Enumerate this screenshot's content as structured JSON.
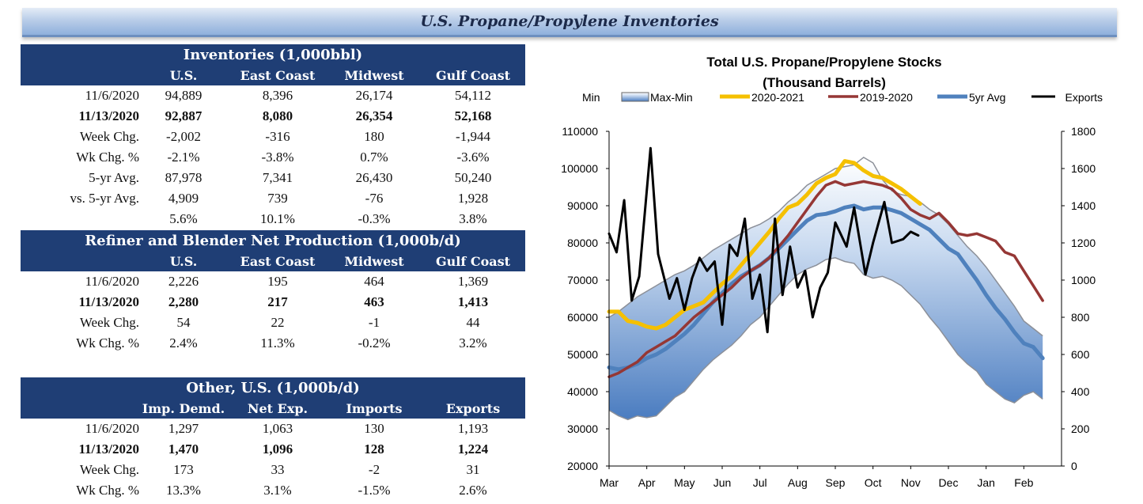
{
  "banner": {
    "title": "U.S. Propane/Propylene Inventories"
  },
  "inventories": {
    "title": "Inventories (1,000bbl)",
    "columns": [
      "",
      "U.S.",
      "East Coast",
      "Midwest",
      "Gulf Coast"
    ],
    "rows": [
      {
        "label": "11/6/2020",
        "values": [
          "94,889",
          "8,396",
          "26,174",
          "54,112"
        ],
        "bold": false
      },
      {
        "label": "11/13/2020",
        "values": [
          "92,887",
          "8,080",
          "26,354",
          "52,168"
        ],
        "bold": true
      },
      {
        "label": "Week Chg.",
        "values": [
          "-2,002",
          "-316",
          "180",
          "-1,944"
        ],
        "bold": false
      },
      {
        "label": "Wk Chg. %",
        "values": [
          "-2.1%",
          "-3.8%",
          "0.7%",
          "-3.6%"
        ],
        "bold": false
      },
      {
        "label": "5-yr Avg.",
        "values": [
          "87,978",
          "7,341",
          "26,430",
          "50,240"
        ],
        "bold": false
      },
      {
        "label": "vs. 5-yr Avg.",
        "values": [
          "4,909",
          "739",
          "-76",
          "1,928"
        ],
        "bold": false
      },
      {
        "label": "",
        "values": [
          "5.6%",
          "10.1%",
          "-0.3%",
          "3.8%"
        ],
        "bold": false
      }
    ]
  },
  "production": {
    "title": "Refiner and Blender Net Production (1,000b/d)",
    "columns": [
      "",
      "U.S.",
      "East Coast",
      "Midwest",
      "Gulf Coast"
    ],
    "rows": [
      {
        "label": "11/6/2020",
        "values": [
          "2,226",
          "195",
          "464",
          "1,369"
        ],
        "bold": false
      },
      {
        "label": "11/13/2020",
        "values": [
          "2,280",
          "217",
          "463",
          "1,413"
        ],
        "bold": true
      },
      {
        "label": "Week Chg.",
        "values": [
          "54",
          "22",
          "-1",
          "44"
        ],
        "bold": false
      },
      {
        "label": "Wk Chg. %",
        "values": [
          "2.4%",
          "11.3%",
          "-0.2%",
          "3.2%"
        ],
        "bold": false
      }
    ]
  },
  "other": {
    "title": "Other, U.S. (1,000b/d)",
    "columns": [
      "",
      "Imp. Demd.",
      "Net Exp.",
      "Imports",
      "Exports"
    ],
    "rows": [
      {
        "label": "11/6/2020",
        "values": [
          "1,297",
          "1,063",
          "130",
          "1,193"
        ],
        "bold": false
      },
      {
        "label": "11/13/2020",
        "values": [
          "1,470",
          "1,096",
          "128",
          "1,224"
        ],
        "bold": true
      },
      {
        "label": "Week Chg.",
        "values": [
          "173",
          "33",
          "-2",
          "31"
        ],
        "bold": false
      },
      {
        "label": "Wk Chg. %",
        "values": [
          "13.3%",
          "3.1%",
          "-1.5%",
          "2.6%"
        ],
        "bold": false
      }
    ]
  },
  "chart_data": {
    "type": "line",
    "title": "Total U.S. Propane/Propylene Stocks",
    "subtitle": "(Thousand Barrels)",
    "x_labels": [
      "Mar",
      "Apr",
      "May",
      "Jun",
      "Jul",
      "Aug",
      "Sep",
      "Oct",
      "Nov",
      "Dec",
      "Jan",
      "Feb"
    ],
    "ylim": [
      20000,
      110000
    ],
    "yticks": [
      20000,
      30000,
      40000,
      50000,
      60000,
      70000,
      80000,
      90000,
      100000,
      110000
    ],
    "y2lim": [
      0,
      1800
    ],
    "y2ticks": [
      0,
      200,
      400,
      600,
      800,
      1000,
      1200,
      1400,
      1600,
      1800
    ],
    "legend_position": "top",
    "legend": [
      "Min",
      "Max-Min",
      "2020-2021",
      "2019-2020",
      "5yr Avg",
      "Exports"
    ],
    "band": {
      "name": "Max-Min",
      "x": [
        0,
        0.25,
        0.5,
        0.75,
        1,
        1.25,
        1.5,
        1.75,
        2,
        2.25,
        2.5,
        2.75,
        3,
        3.25,
        3.5,
        3.75,
        4,
        4.25,
        4.5,
        4.75,
        5,
        5.25,
        5.5,
        5.75,
        6,
        6.25,
        6.5,
        6.75,
        7,
        7.25,
        7.5,
        7.75,
        8,
        8.25,
        8.5,
        8.75,
        9,
        9.25,
        9.5,
        9.75,
        10,
        10.25,
        10.5,
        10.75,
        11,
        11.25,
        11.5
      ],
      "max": [
        60000,
        61500,
        63500,
        65500,
        67000,
        68500,
        70000,
        71500,
        72500,
        74000,
        76000,
        78000,
        79500,
        81000,
        82500,
        84000,
        85000,
        86500,
        88500,
        91000,
        93000,
        95500,
        97000,
        98500,
        100000,
        100500,
        101000,
        103000,
        101500,
        97000,
        94000,
        93000,
        92500,
        91000,
        89000,
        87500,
        85000,
        82000,
        79000,
        76500,
        73500,
        70000,
        66500,
        63000,
        59000,
        57000,
        55000
      ],
      "min": [
        35000,
        33500,
        32500,
        33500,
        33000,
        33500,
        36000,
        38500,
        40000,
        43000,
        46000,
        48500,
        50500,
        52500,
        55000,
        58000,
        60000,
        63000,
        66000,
        69000,
        71500,
        73000,
        74000,
        75500,
        76000,
        75000,
        74500,
        71500,
        70500,
        71000,
        70000,
        68500,
        66000,
        63500,
        60000,
        57000,
        53500,
        50000,
        47500,
        45500,
        42000,
        40000,
        38000,
        37000,
        39000,
        40000,
        38000
      ]
    },
    "series": [
      {
        "name": "2020-2021",
        "color": "#f5c000",
        "axis": "left",
        "x": [
          0,
          0.25,
          0.5,
          0.75,
          1,
          1.25,
          1.5,
          1.75,
          2,
          2.25,
          2.5,
          2.75,
          3,
          3.25,
          3.5,
          3.75,
          4,
          4.25,
          4.5,
          4.75,
          5,
          5.25,
          5.5,
          5.75,
          6,
          6.25,
          6.5,
          6.75,
          7,
          7.25,
          7.5,
          7.75,
          8,
          8.25
        ],
        "values": [
          61500,
          61500,
          59000,
          58500,
          57500,
          57000,
          58000,
          60000,
          62000,
          63000,
          64000,
          66500,
          69000,
          71000,
          74000,
          77000,
          80000,
          83000,
          86500,
          89500,
          90500,
          93000,
          96000,
          97500,
          98500,
          102000,
          101500,
          99500,
          98000,
          97500,
          96000,
          94500,
          92500,
          90500
        ]
      },
      {
        "name": "2019-2020",
        "color": "#953735",
        "axis": "left",
        "x": [
          0,
          0.25,
          0.5,
          0.75,
          1,
          1.25,
          1.5,
          1.75,
          2,
          2.25,
          2.5,
          2.75,
          3,
          3.25,
          3.5,
          3.75,
          4,
          4.25,
          4.5,
          4.75,
          5,
          5.25,
          5.5,
          5.75,
          6,
          6.25,
          6.5,
          6.75,
          7,
          7.25,
          7.5,
          7.75,
          8,
          8.25,
          8.5,
          8.75,
          9,
          9.25,
          9.5,
          9.75,
          10,
          10.25,
          10.5,
          10.75,
          11,
          11.25,
          11.5
        ],
        "values": [
          44000,
          45000,
          46500,
          48000,
          50500,
          52000,
          53500,
          55000,
          57500,
          60000,
          62000,
          64000,
          66000,
          68000,
          70500,
          72500,
          74000,
          76000,
          79000,
          82000,
          85500,
          89000,
          92500,
          95500,
          96500,
          95500,
          96000,
          96500,
          96000,
          95500,
          94500,
          92000,
          89000,
          87500,
          86500,
          88000,
          85500,
          82500,
          82000,
          82500,
          81500,
          80500,
          77500,
          76500,
          72500,
          68500,
          64500
        ]
      },
      {
        "name": "5yr Avg",
        "color": "#4f81bd",
        "axis": "left",
        "x": [
          0,
          0.25,
          0.5,
          0.75,
          1,
          1.25,
          1.5,
          1.75,
          2,
          2.25,
          2.5,
          2.75,
          3,
          3.25,
          3.5,
          3.75,
          4,
          4.25,
          4.5,
          4.75,
          5,
          5.25,
          5.5,
          5.75,
          6,
          6.25,
          6.5,
          6.75,
          7,
          7.25,
          7.5,
          7.75,
          8,
          8.25,
          8.5,
          8.75,
          9,
          9.25,
          9.5,
          9.75,
          10,
          10.25,
          10.5,
          10.75,
          11,
          11.25,
          11.5
        ],
        "values": [
          46500,
          46000,
          46500,
          47500,
          49000,
          50000,
          51500,
          53500,
          55500,
          58000,
          61000,
          64000,
          66500,
          69000,
          71000,
          72500,
          74000,
          76000,
          78500,
          81000,
          83500,
          86000,
          87500,
          87800,
          88500,
          89500,
          90000,
          89000,
          89500,
          89500,
          88800,
          88000,
          86500,
          85000,
          83500,
          81000,
          78500,
          77000,
          73500,
          70000,
          66000,
          62500,
          59500,
          56000,
          53000,
          52000,
          49000
        ]
      },
      {
        "name": "Exports",
        "color": "#000000",
        "axis": "right",
        "x": [
          0,
          0.2,
          0.4,
          0.6,
          0.8,
          1.1,
          1.3,
          1.6,
          1.8,
          2.0,
          2.2,
          2.4,
          2.6,
          2.8,
          3.0,
          3.2,
          3.4,
          3.6,
          3.8,
          4.0,
          4.2,
          4.4,
          4.6,
          4.8,
          5.0,
          5.2,
          5.4,
          5.6,
          5.8,
          6.0,
          6.3,
          6.5,
          6.8,
          7.0,
          7.3,
          7.5,
          7.8,
          8.0,
          8.2
        ],
        "values": [
          1250,
          1150,
          1430,
          890,
          1020,
          1710,
          1140,
          900,
          1010,
          840,
          1010,
          1120,
          1050,
          1100,
          760,
          1190,
          1130,
          1330,
          900,
          1030,
          720,
          1330,
          920,
          1180,
          960,
          1050,
          800,
          960,
          1040,
          1310,
          1180,
          1390,
          1030,
          1200,
          1420,
          1200,
          1220,
          1260,
          1240
        ]
      }
    ]
  }
}
